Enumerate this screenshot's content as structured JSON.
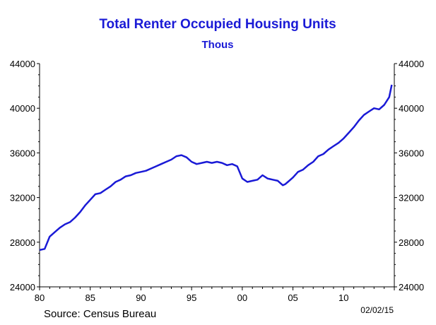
{
  "chart_data": {
    "type": "line",
    "title": "Total Renter Occupied Housing Units",
    "subtitle": "Thous",
    "source": "Source:  Census Bureau",
    "date_stamp": "02/02/15",
    "x_tick_labels": [
      "80",
      "85",
      "90",
      "95",
      "00",
      "05",
      "10"
    ],
    "y_ticks": [
      24000,
      28000,
      32000,
      36000,
      40000,
      44000
    ],
    "ylim": [
      24000,
      44000
    ],
    "xlim": [
      1980.0,
      2015.0
    ],
    "grid": false,
    "line_color": "#1a1ad6",
    "series": [
      {
        "x": [
          1980.0,
          1980.5,
          1981.0,
          1981.5,
          1982.0,
          1982.5,
          1983.0,
          1983.5,
          1984.0,
          1984.5,
          1985.0,
          1985.5,
          1986.0,
          1986.5,
          1987.0,
          1987.5,
          1988.0,
          1988.5,
          1989.0,
          1989.5,
          1990.0,
          1990.5,
          1991.0,
          1991.5,
          1992.0,
          1992.5,
          1993.0,
          1993.5,
          1994.0,
          1994.5,
          1995.0,
          1995.5,
          1996.0,
          1996.5,
          1997.0,
          1997.5,
          1998.0,
          1998.5,
          1999.0,
          1999.5,
          2000.0,
          2000.5,
          2001.0,
          2001.5,
          2002.0,
          2002.5,
          2003.0,
          2003.5,
          2004.0,
          2004.25,
          2004.5,
          2005.0,
          2005.5,
          2006.0,
          2006.5,
          2007.0,
          2007.5,
          2008.0,
          2008.5,
          2009.0,
          2009.5,
          2010.0,
          2010.5,
          2011.0,
          2011.5,
          2012.0,
          2012.5,
          2013.0,
          2013.5,
          2014.0,
          2014.5,
          2014.75
        ],
        "values": [
          27300,
          27400,
          28500,
          28900,
          29300,
          29600,
          29800,
          30200,
          30700,
          31300,
          31800,
          32300,
          32400,
          32700,
          33000,
          33400,
          33600,
          33900,
          34000,
          34200,
          34300,
          34400,
          34600,
          34800,
          35000,
          35200,
          35400,
          35700,
          35800,
          35600,
          35200,
          35000,
          35100,
          35200,
          35100,
          35200,
          35100,
          34900,
          35000,
          34800,
          33700,
          33400,
          33500,
          33600,
          34000,
          33700,
          33600,
          33500,
          33100,
          33200,
          33400,
          33800,
          34300,
          34500,
          34900,
          35200,
          35700,
          35900,
          36300,
          36600,
          36900,
          37300,
          37800,
          38300,
          38900,
          39400,
          39700,
          40000,
          39900,
          40300,
          41000,
          42100
        ]
      }
    ]
  }
}
